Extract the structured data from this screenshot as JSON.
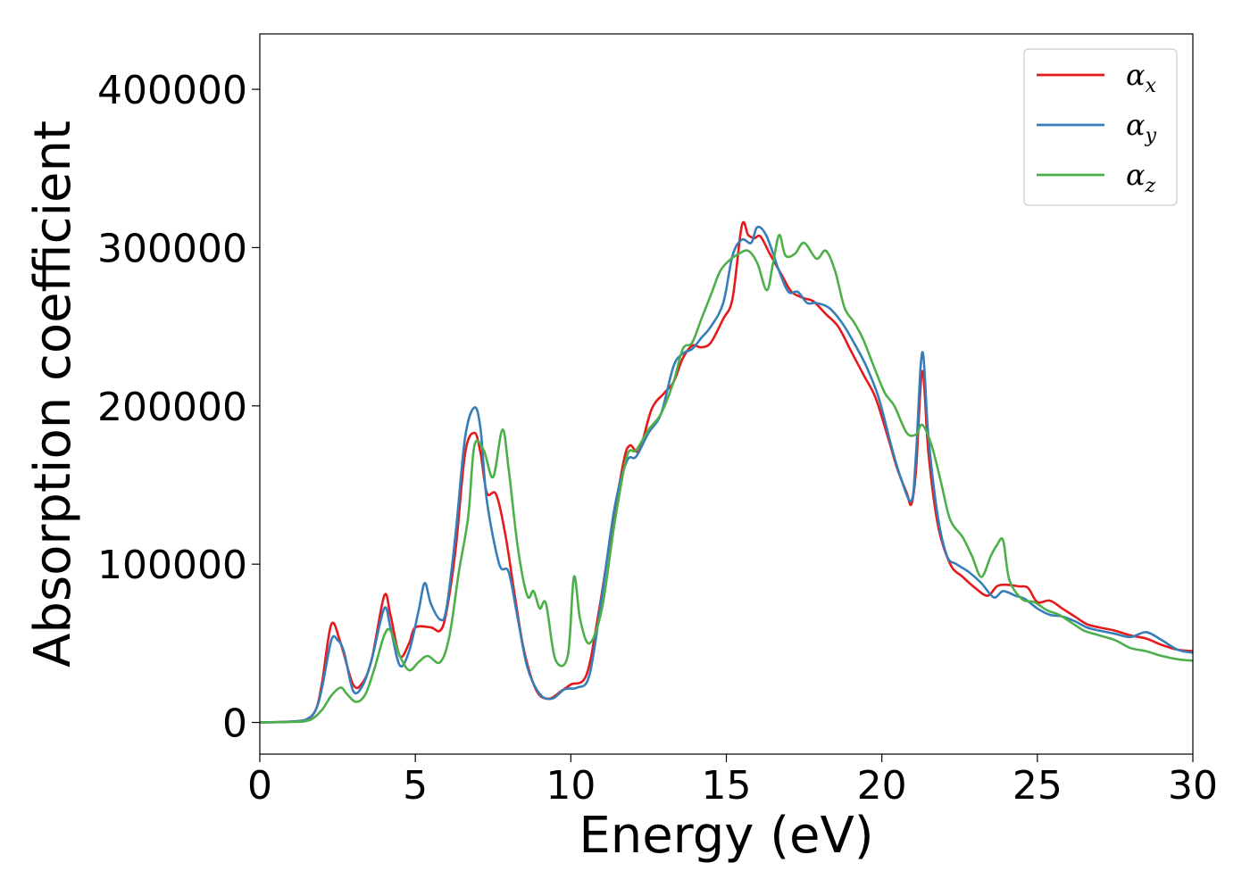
{
  "chart_data": {
    "type": "line",
    "title": "",
    "xlabel": "Energy (eV)",
    "ylabel": "Absorption coefficient",
    "xlim": [
      0,
      30
    ],
    "ylim": [
      -20000,
      435000
    ],
    "xticks": [
      0,
      5,
      10,
      15,
      20,
      25,
      30
    ],
    "yticks": [
      0,
      100000,
      200000,
      300000,
      400000
    ],
    "grid": false,
    "legend_position": "top-right",
    "series": [
      {
        "name": "α_x",
        "legend_base": "α",
        "legend_sub": "x",
        "color": "#e41a1c",
        "points": [
          [
            0,
            0
          ],
          [
            1,
            500
          ],
          [
            1.5,
            2000
          ],
          [
            1.8,
            8000
          ],
          [
            2,
            25000
          ],
          [
            2.3,
            62000
          ],
          [
            2.6,
            50000
          ],
          [
            3,
            24000
          ],
          [
            3.3,
            25000
          ],
          [
            3.6,
            40000
          ],
          [
            4,
            80000
          ],
          [
            4.2,
            68000
          ],
          [
            4.5,
            42000
          ],
          [
            4.8,
            50000
          ],
          [
            5,
            60000
          ],
          [
            5.5,
            60000
          ],
          [
            5.8,
            58000
          ],
          [
            6,
            70000
          ],
          [
            6.3,
            110000
          ],
          [
            6.6,
            170000
          ],
          [
            6.9,
            183000
          ],
          [
            7.1,
            170000
          ],
          [
            7.3,
            145000
          ],
          [
            7.6,
            144000
          ],
          [
            7.9,
            118000
          ],
          [
            8.2,
            80000
          ],
          [
            8.5,
            45000
          ],
          [
            8.9,
            20000
          ],
          [
            9.3,
            15000
          ],
          [
            9.7,
            20000
          ],
          [
            10,
            24000
          ],
          [
            10.5,
            30000
          ],
          [
            10.9,
            70000
          ],
          [
            11.3,
            120000
          ],
          [
            11.7,
            165000
          ],
          [
            11.9,
            175000
          ],
          [
            12.2,
            172000
          ],
          [
            12.6,
            198000
          ],
          [
            13,
            208000
          ],
          [
            13.3,
            215000
          ],
          [
            13.6,
            230000
          ],
          [
            13.9,
            238000
          ],
          [
            14.2,
            237000
          ],
          [
            14.5,
            240000
          ],
          [
            14.9,
            255000
          ],
          [
            15.2,
            268000
          ],
          [
            15.5,
            314000
          ],
          [
            15.7,
            308000
          ],
          [
            15.9,
            306000
          ],
          [
            16.1,
            307000
          ],
          [
            16.4,
            296000
          ],
          [
            16.8,
            282000
          ],
          [
            17.1,
            272000
          ],
          [
            17.5,
            268000
          ],
          [
            17.8,
            266000
          ],
          [
            18.2,
            258000
          ],
          [
            18.6,
            250000
          ],
          [
            19,
            235000
          ],
          [
            19.4,
            220000
          ],
          [
            19.8,
            205000
          ],
          [
            20.2,
            180000
          ],
          [
            20.5,
            160000
          ],
          [
            20.8,
            145000
          ],
          [
            20.95,
            138000
          ],
          [
            21.1,
            160000
          ],
          [
            21.3,
            222000
          ],
          [
            21.5,
            170000
          ],
          [
            21.8,
            125000
          ],
          [
            22.2,
            100000
          ],
          [
            22.6,
            92000
          ],
          [
            23,
            85000
          ],
          [
            23.4,
            80000
          ],
          [
            23.7,
            86000
          ],
          [
            24,
            87000
          ],
          [
            24.4,
            86000
          ],
          [
            24.7,
            85000
          ],
          [
            25,
            76000
          ],
          [
            25.4,
            77000
          ],
          [
            25.8,
            72000
          ],
          [
            26.2,
            67000
          ],
          [
            26.6,
            62000
          ],
          [
            27,
            60000
          ],
          [
            27.5,
            58000
          ],
          [
            28,
            55000
          ],
          [
            28.5,
            53000
          ],
          [
            29,
            49000
          ],
          [
            29.5,
            46000
          ],
          [
            30,
            45000
          ]
        ]
      },
      {
        "name": "α_y",
        "legend_base": "α",
        "legend_sub": "y",
        "color": "#377eb8",
        "points": [
          [
            0,
            0
          ],
          [
            1,
            500
          ],
          [
            1.5,
            2000
          ],
          [
            1.8,
            8000
          ],
          [
            2,
            22000
          ],
          [
            2.3,
            52000
          ],
          [
            2.5,
            52000
          ],
          [
            2.7,
            45000
          ],
          [
            3,
            20000
          ],
          [
            3.3,
            23000
          ],
          [
            3.6,
            40000
          ],
          [
            4,
            72000
          ],
          [
            4.2,
            60000
          ],
          [
            4.5,
            36000
          ],
          [
            4.8,
            45000
          ],
          [
            5.1,
            70000
          ],
          [
            5.3,
            88000
          ],
          [
            5.5,
            75000
          ],
          [
            5.8,
            65000
          ],
          [
            6,
            72000
          ],
          [
            6.3,
            120000
          ],
          [
            6.6,
            180000
          ],
          [
            6.9,
            199000
          ],
          [
            7.1,
            185000
          ],
          [
            7.3,
            140000
          ],
          [
            7.7,
            100000
          ],
          [
            8,
            95000
          ],
          [
            8.3,
            65000
          ],
          [
            8.6,
            35000
          ],
          [
            9,
            18000
          ],
          [
            9.4,
            15000
          ],
          [
            9.8,
            21000
          ],
          [
            10.2,
            22000
          ],
          [
            10.6,
            30000
          ],
          [
            11,
            80000
          ],
          [
            11.4,
            135000
          ],
          [
            11.8,
            165000
          ],
          [
            12.1,
            168000
          ],
          [
            12.5,
            183000
          ],
          [
            12.9,
            195000
          ],
          [
            13.3,
            225000
          ],
          [
            13.6,
            233000
          ],
          [
            13.9,
            236000
          ],
          [
            14.2,
            243000
          ],
          [
            14.5,
            250000
          ],
          [
            14.9,
            265000
          ],
          [
            15.2,
            295000
          ],
          [
            15.5,
            305000
          ],
          [
            15.8,
            303000
          ],
          [
            16,
            313000
          ],
          [
            16.3,
            307000
          ],
          [
            16.7,
            285000
          ],
          [
            17,
            272000
          ],
          [
            17.3,
            272000
          ],
          [
            17.6,
            265000
          ],
          [
            17.9,
            265000
          ],
          [
            18.3,
            262000
          ],
          [
            18.7,
            253000
          ],
          [
            19.1,
            240000
          ],
          [
            19.5,
            225000
          ],
          [
            19.9,
            205000
          ],
          [
            20.3,
            175000
          ],
          [
            20.6,
            155000
          ],
          [
            20.95,
            140000
          ],
          [
            21.1,
            170000
          ],
          [
            21.3,
            234000
          ],
          [
            21.5,
            180000
          ],
          [
            21.8,
            130000
          ],
          [
            22.1,
            105000
          ],
          [
            22.4,
            100000
          ],
          [
            22.8,
            95000
          ],
          [
            23.2,
            88000
          ],
          [
            23.6,
            79000
          ],
          [
            23.9,
            83000
          ],
          [
            24.3,
            80000
          ],
          [
            24.6,
            78000
          ],
          [
            25,
            72000
          ],
          [
            25.4,
            68000
          ],
          [
            25.8,
            67000
          ],
          [
            26.2,
            64000
          ],
          [
            26.6,
            60000
          ],
          [
            27,
            58000
          ],
          [
            27.5,
            56000
          ],
          [
            28,
            54000
          ],
          [
            28.5,
            57000
          ],
          [
            29,
            52000
          ],
          [
            29.5,
            46000
          ],
          [
            30,
            44000
          ]
        ]
      },
      {
        "name": "α_z",
        "legend_base": "α",
        "legend_sub": "z",
        "color": "#4daf4a",
        "points": [
          [
            0,
            0
          ],
          [
            1,
            300
          ],
          [
            1.6,
            1500
          ],
          [
            2,
            8000
          ],
          [
            2.3,
            17000
          ],
          [
            2.6,
            22000
          ],
          [
            2.8,
            18000
          ],
          [
            3.1,
            13000
          ],
          [
            3.4,
            18000
          ],
          [
            3.7,
            35000
          ],
          [
            4,
            55000
          ],
          [
            4.2,
            58000
          ],
          [
            4.5,
            42000
          ],
          [
            4.8,
            33000
          ],
          [
            5.1,
            38000
          ],
          [
            5.4,
            42000
          ],
          [
            5.8,
            38000
          ],
          [
            6.1,
            55000
          ],
          [
            6.4,
            95000
          ],
          [
            6.7,
            130000
          ],
          [
            6.9,
            175000
          ],
          [
            7.2,
            172000
          ],
          [
            7.5,
            155000
          ],
          [
            7.8,
            185000
          ],
          [
            8,
            160000
          ],
          [
            8.3,
            110000
          ],
          [
            8.6,
            80000
          ],
          [
            8.8,
            83000
          ],
          [
            9,
            72000
          ],
          [
            9.2,
            75000
          ],
          [
            9.5,
            40000
          ],
          [
            9.9,
            42000
          ],
          [
            10.1,
            92000
          ],
          [
            10.3,
            65000
          ],
          [
            10.6,
            50000
          ],
          [
            11,
            72000
          ],
          [
            11.4,
            125000
          ],
          [
            11.8,
            168000
          ],
          [
            12.1,
            172000
          ],
          [
            12.5,
            185000
          ],
          [
            12.9,
            195000
          ],
          [
            13.3,
            215000
          ],
          [
            13.6,
            236000
          ],
          [
            13.9,
            240000
          ],
          [
            14.2,
            255000
          ],
          [
            14.5,
            270000
          ],
          [
            14.8,
            285000
          ],
          [
            15.1,
            292000
          ],
          [
            15.4,
            296000
          ],
          [
            15.7,
            298000
          ],
          [
            16,
            290000
          ],
          [
            16.3,
            273000
          ],
          [
            16.5,
            290000
          ],
          [
            16.7,
            308000
          ],
          [
            16.9,
            295000
          ],
          [
            17.2,
            296000
          ],
          [
            17.5,
            303000
          ],
          [
            17.9,
            293000
          ],
          [
            18.2,
            298000
          ],
          [
            18.5,
            285000
          ],
          [
            18.8,
            262000
          ],
          [
            19.1,
            253000
          ],
          [
            19.4,
            242000
          ],
          [
            19.8,
            222000
          ],
          [
            20.1,
            208000
          ],
          [
            20.4,
            200000
          ],
          [
            20.8,
            183000
          ],
          [
            21.1,
            182000
          ],
          [
            21.3,
            188000
          ],
          [
            21.6,
            175000
          ],
          [
            21.9,
            152000
          ],
          [
            22.2,
            128000
          ],
          [
            22.6,
            117000
          ],
          [
            22.9,
            105000
          ],
          [
            23.2,
            92000
          ],
          [
            23.5,
            105000
          ],
          [
            23.7,
            112000
          ],
          [
            23.9,
            115000
          ],
          [
            24.1,
            90000
          ],
          [
            24.5,
            78000
          ],
          [
            24.9,
            76000
          ],
          [
            25.3,
            71000
          ],
          [
            25.7,
            68000
          ],
          [
            26.1,
            63000
          ],
          [
            26.5,
            58000
          ],
          [
            27,
            55000
          ],
          [
            27.5,
            52000
          ],
          [
            28,
            47000
          ],
          [
            28.5,
            45000
          ],
          [
            29,
            42000
          ],
          [
            29.5,
            40000
          ],
          [
            30,
            39000
          ]
        ]
      }
    ]
  }
}
